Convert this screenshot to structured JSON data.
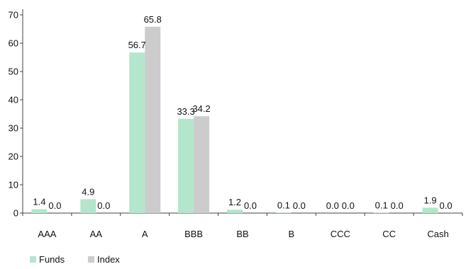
{
  "chart_data": {
    "type": "bar",
    "categories": [
      "AAA",
      "AA",
      "A",
      "BBB",
      "BB",
      "B",
      "CCC",
      "CC",
      "Cash"
    ],
    "series": [
      {
        "name": "Funds",
        "values": [
          1.4,
          4.9,
          56.7,
          33.3,
          1.2,
          0.1,
          0.0,
          0.1,
          1.9
        ],
        "labels": [
          "1.4",
          "4.9",
          "56.7",
          "33.3",
          "1.2",
          "0.1",
          "0.0",
          "0.1",
          "1.9"
        ],
        "color": "#b3e6cc"
      },
      {
        "name": "Index",
        "values": [
          0.0,
          0.0,
          65.8,
          34.2,
          0.0,
          0.0,
          0.0,
          0.0,
          0.0
        ],
        "labels": [
          "0.0",
          "0.0",
          "65.8",
          "34.2",
          "0.0",
          "0.0",
          "0.0",
          "0.0",
          "0.0"
        ],
        "color": "#cccccc"
      }
    ],
    "y_ticks": [
      "0",
      "10",
      "20",
      "30",
      "40",
      "50",
      "60",
      "70"
    ],
    "ylim": [
      0,
      70
    ],
    "grid": false,
    "legend_position": "bottom-left"
  }
}
